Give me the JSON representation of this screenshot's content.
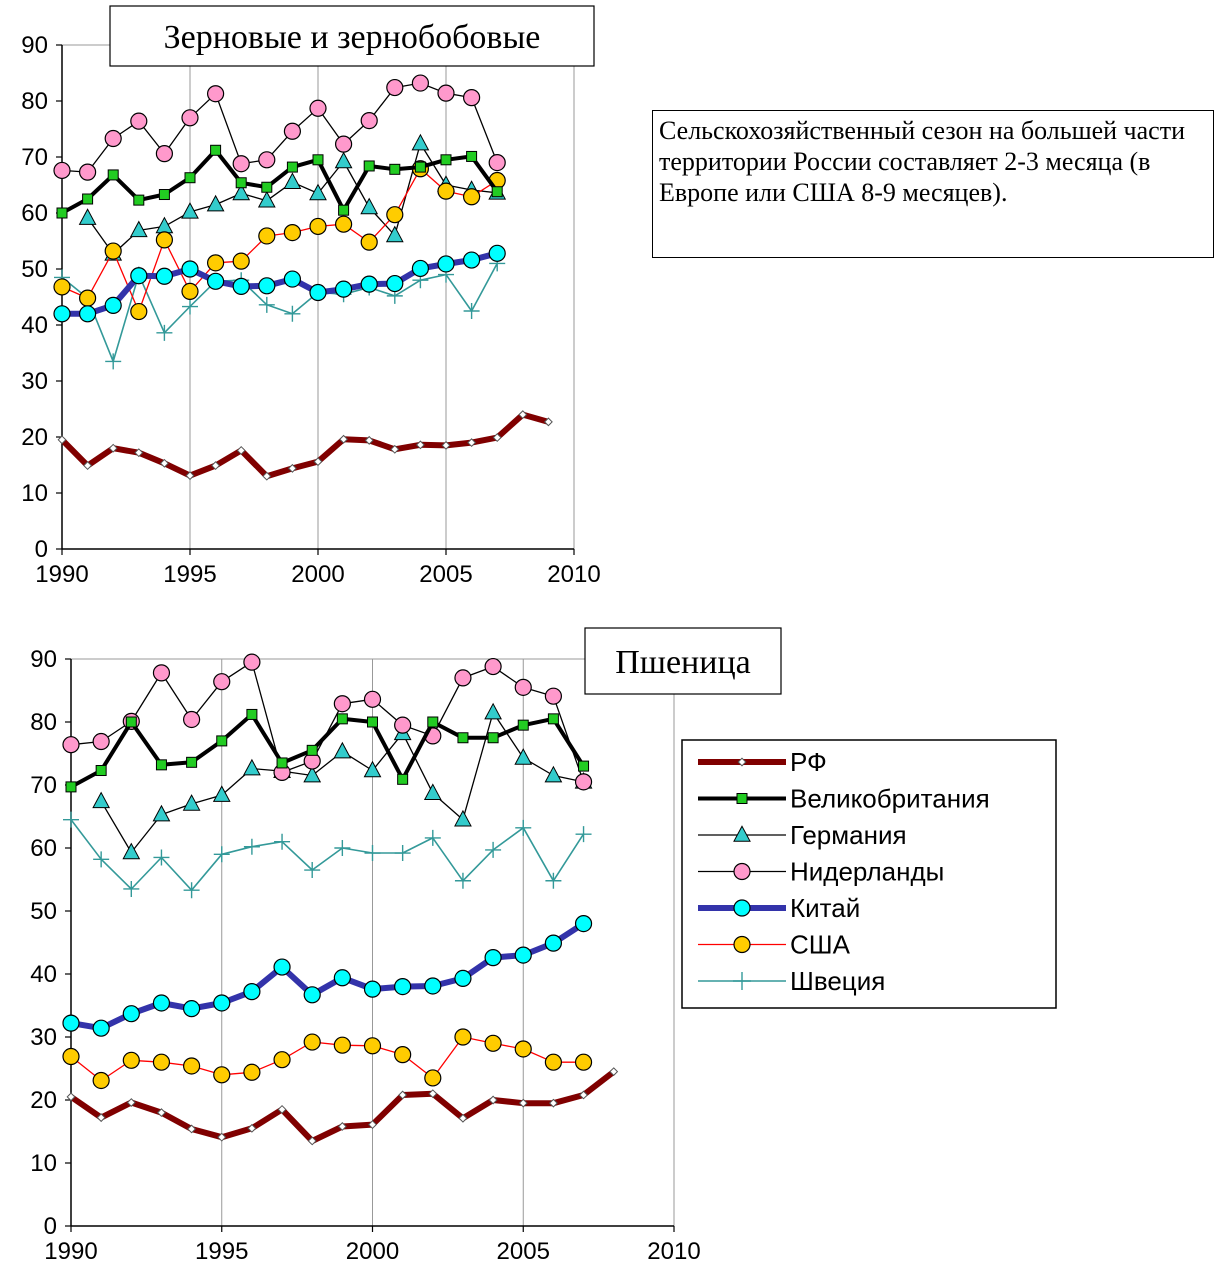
{
  "note": "Сельскохозяйственный сезон на большей части территории России составляет 2-3 месяца (в Европе или США 8-9 месяцев).",
  "legend": {
    "entries": [
      {
        "label": "РФ",
        "series": "rf"
      },
      {
        "label": "Великобритания",
        "series": "uk"
      },
      {
        "label": "Германия",
        "series": "de"
      },
      {
        "label": "Нидерланды",
        "series": "nl"
      },
      {
        "label": "Китай",
        "series": "cn"
      },
      {
        "label": "США",
        "series": "us"
      },
      {
        "label": "Швеция",
        "series": "se"
      }
    ]
  },
  "styles": {
    "rf": {
      "color": "#800000",
      "width": 6,
      "marker": "diamond",
      "fill": "#ffffff"
    },
    "uk": {
      "color": "#000000",
      "width": 4,
      "marker": "square",
      "fill": "#22cc22"
    },
    "de": {
      "color": "#000000",
      "width": 1.3,
      "marker": "triangle",
      "fill": "#33cccc"
    },
    "nl": {
      "color": "#000000",
      "width": 1.3,
      "marker": "circle",
      "fill": "#ff99cc"
    },
    "cn": {
      "color": "#3333aa",
      "width": 6,
      "marker": "circle",
      "fill": "#00ffff"
    },
    "us": {
      "color": "#ff0000",
      "width": 1.3,
      "marker": "circle",
      "fill": "#ffcc00"
    },
    "se": {
      "color": "#339999",
      "width": 1.6,
      "marker": "plus",
      "fill": "none"
    }
  },
  "chart_data": [
    {
      "type": "line",
      "title": "Зерновые и зернобобовые",
      "xlim": [
        1990,
        2010
      ],
      "ylim": [
        0,
        90
      ],
      "xticks": [
        1990,
        1995,
        2000,
        2005,
        2010
      ],
      "yticks": [
        0,
        10,
        20,
        30,
        40,
        50,
        60,
        70,
        80,
        90
      ],
      "grid": "vertical",
      "series": [
        {
          "key": "rf",
          "x": [
            1990,
            1991,
            1992,
            1993,
            1994,
            1995,
            1996,
            1997,
            1998,
            1999,
            2000,
            2001,
            2002,
            2003,
            2004,
            2005,
            2006,
            2007,
            2008,
            2009
          ],
          "values": [
            19.5,
            14.9,
            18.0,
            17.2,
            15.3,
            13.1,
            14.9,
            17.6,
            13.0,
            14.4,
            15.6,
            19.6,
            19.4,
            17.8,
            18.6,
            18.5,
            19.0,
            19.9,
            24.0,
            22.7
          ]
        },
        {
          "key": "uk",
          "x": [
            1990,
            1991,
            1992,
            1993,
            1994,
            1995,
            1996,
            1997,
            1998,
            1999,
            2000,
            2001,
            2002,
            2003,
            2004,
            2005,
            2006,
            2007
          ],
          "values": [
            60.0,
            62.5,
            66.8,
            62.3,
            63.3,
            66.3,
            71.2,
            65.4,
            64.6,
            68.2,
            69.5,
            60.5,
            68.4,
            67.8,
            68.2,
            69.5,
            70.1,
            63.8
          ]
        },
        {
          "key": "de",
          "x": [
            1991,
            1992,
            1993,
            1994,
            1995,
            1996,
            1997,
            1998,
            1999,
            2000,
            2001,
            2002,
            2003,
            2004,
            2005,
            2006,
            2007
          ],
          "values": [
            59.1,
            52.7,
            56.9,
            57.6,
            60.2,
            61.5,
            63.5,
            62.2,
            65.5,
            63.5,
            69.2,
            61.0,
            56.0,
            72.4,
            65.0,
            64.1,
            63.6
          ]
        },
        {
          "key": "nl",
          "x": [
            1990,
            1991,
            1992,
            1993,
            1994,
            1995,
            1996,
            1997,
            1998,
            1999,
            2000,
            2001,
            2002,
            2003,
            2004,
            2005,
            2006,
            2007
          ],
          "values": [
            67.6,
            67.3,
            73.3,
            76.4,
            70.6,
            77.0,
            81.3,
            68.8,
            69.5,
            74.6,
            78.7,
            72.3,
            76.5,
            82.4,
            83.2,
            81.4,
            80.6,
            69.0
          ]
        },
        {
          "key": "cn",
          "x": [
            1990,
            1991,
            1992,
            1993,
            1994,
            1995,
            1996,
            1997,
            1998,
            1999,
            2000,
            2001,
            2002,
            2003,
            2004,
            2005,
            2006,
            2007
          ],
          "values": [
            42.0,
            42.0,
            43.5,
            48.8,
            48.7,
            50.0,
            47.8,
            46.9,
            47.0,
            48.2,
            45.8,
            46.4,
            47.3,
            47.4,
            50.1,
            50.9,
            51.6,
            52.8
          ]
        },
        {
          "key": "us",
          "x": [
            1990,
            1991,
            1992,
            1993,
            1994,
            1995,
            1996,
            1997,
            1998,
            1999,
            2000,
            2001,
            2002,
            2003,
            2004,
            2005,
            2006,
            2007
          ],
          "values": [
            46.8,
            44.8,
            53.2,
            42.4,
            55.2,
            46.0,
            51.1,
            51.4,
            55.9,
            56.5,
            57.6,
            58.0,
            54.8,
            59.7,
            67.9,
            63.9,
            62.9,
            65.8
          ]
        },
        {
          "key": "se",
          "x": [
            1990,
            1991,
            1992,
            1993,
            1994,
            1995,
            1996,
            1997,
            1998,
            1999,
            2000,
            2001,
            2002,
            2003,
            2004,
            2005,
            2006,
            2007
          ],
          "values": [
            48.5,
            44.8,
            33.5,
            49.0,
            38.6,
            43.3,
            47.8,
            48.0,
            43.6,
            42.0,
            45.8,
            45.5,
            46.7,
            45.2,
            48.0,
            49.0,
            42.5,
            51.0
          ]
        }
      ]
    },
    {
      "type": "line",
      "title": "Пшеница",
      "xlim": [
        1990,
        2010
      ],
      "ylim": [
        0,
        90
      ],
      "xticks": [
        1990,
        1995,
        2000,
        2005,
        2010
      ],
      "yticks": [
        0,
        10,
        20,
        30,
        40,
        50,
        60,
        70,
        80,
        90
      ],
      "grid": "vertical",
      "legend": "right",
      "series": [
        {
          "key": "rf",
          "x": [
            1990,
            1991,
            1992,
            1993,
            1994,
            1995,
            1996,
            1997,
            1998,
            1999,
            2000,
            2001,
            2002,
            2003,
            2004,
            2005,
            2006,
            2007,
            2008
          ],
          "values": [
            20.5,
            17.2,
            19.6,
            18.0,
            15.4,
            14.1,
            15.5,
            18.5,
            13.5,
            15.8,
            16.1,
            20.8,
            21.0,
            17.1,
            20.0,
            19.5,
            19.5,
            20.8,
            24.5
          ]
        },
        {
          "key": "uk",
          "x": [
            1990,
            1991,
            1992,
            1993,
            1994,
            1995,
            1996,
            1997,
            1998,
            1999,
            2000,
            2001,
            2002,
            2003,
            2004,
            2005,
            2006,
            2007
          ],
          "values": [
            69.7,
            72.3,
            80.0,
            73.2,
            73.6,
            77.0,
            81.2,
            73.5,
            75.5,
            80.5,
            80.0,
            70.9,
            80.0,
            77.5,
            77.5,
            79.5,
            80.5,
            73.0
          ]
        },
        {
          "key": "de",
          "x": [
            1991,
            1992,
            1993,
            1994,
            1995,
            1996,
            1997,
            1998,
            1999,
            2000,
            2001,
            2002,
            2003,
            2004,
            2005,
            2006,
            2007
          ],
          "values": [
            67.4,
            59.3,
            65.3,
            67.0,
            68.4,
            72.6,
            72.2,
            71.5,
            75.3,
            72.3,
            78.2,
            68.7,
            64.5,
            81.5,
            74.3,
            71.5,
            70.5
          ]
        },
        {
          "key": "nl",
          "x": [
            1990,
            1991,
            1992,
            1993,
            1994,
            1995,
            1996,
            1997,
            1998,
            1999,
            2000,
            2001,
            2002,
            2003,
            2004,
            2005,
            2006,
            2007
          ],
          "values": [
            76.4,
            76.9,
            80.1,
            87.8,
            80.4,
            86.4,
            89.5,
            72.0,
            73.8,
            82.9,
            83.6,
            79.5,
            77.8,
            87.0,
            88.8,
            85.5,
            84.1,
            70.5
          ]
        },
        {
          "key": "cn",
          "x": [
            1990,
            1991,
            1992,
            1993,
            1994,
            1995,
            1996,
            1997,
            1998,
            1999,
            2000,
            2001,
            2002,
            2003,
            2004,
            2005,
            2006,
            2007
          ],
          "values": [
            32.2,
            31.4,
            33.7,
            35.4,
            34.5,
            35.4,
            37.2,
            41.1,
            36.7,
            39.4,
            37.6,
            38.0,
            38.1,
            39.3,
            42.6,
            43.0,
            44.9,
            48.0
          ]
        },
        {
          "key": "us",
          "x": [
            1990,
            1991,
            1992,
            1993,
            1994,
            1995,
            1996,
            1997,
            1998,
            1999,
            2000,
            2001,
            2002,
            2003,
            2004,
            2005,
            2006,
            2007
          ],
          "values": [
            26.9,
            23.1,
            26.3,
            26.0,
            25.4,
            24.0,
            24.4,
            26.4,
            29.2,
            28.7,
            28.6,
            27.2,
            23.5,
            30.0,
            29.0,
            28.1,
            26.0,
            26.0
          ]
        },
        {
          "key": "se",
          "x": [
            1990,
            1991,
            1992,
            1993,
            1994,
            1995,
            1996,
            1997,
            1998,
            1999,
            2000,
            2001,
            2002,
            2003,
            2004,
            2005,
            2006,
            2007
          ],
          "values": [
            64.5,
            58.2,
            53.5,
            58.5,
            53.3,
            59.0,
            60.2,
            61.0,
            56.5,
            60.0,
            59.2,
            59.2,
            61.6,
            54.8,
            59.7,
            63.2,
            54.8,
            62.2
          ]
        }
      ]
    }
  ]
}
